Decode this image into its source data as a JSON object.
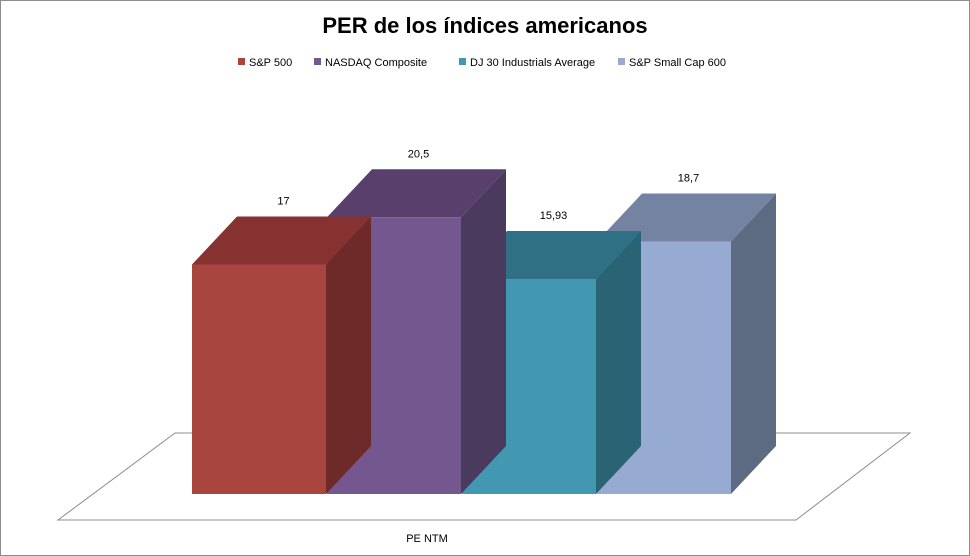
{
  "chart_data": {
    "type": "bar",
    "title": "PER de los índices americanos",
    "categories": [
      "PE NTM"
    ],
    "series": [
      {
        "name": "S&P 500",
        "values": [
          17
        ],
        "label": "17",
        "color": "#A9453F",
        "top_color": "#853230",
        "side_color": "#6E2A28"
      },
      {
        "name": "NASDAQ Composite",
        "values": [
          20.5
        ],
        "label": "20,5",
        "color": "#73578E",
        "top_color": "#583F6C",
        "side_color": "#4A3A5E"
      },
      {
        "name": "DJ 30 Industrials Average",
        "values": [
          15.93
        ],
        "label": "15,93",
        "color": "#4298B0",
        "top_color": "#2F7085",
        "side_color": "#2A6373"
      },
      {
        "name": "S&P Small Cap 600",
        "values": [
          18.7
        ],
        "label": "18,7",
        "color": "#97ABD2",
        "top_color": "#7483A2",
        "side_color": "#5C6A82"
      }
    ],
    "legend_position": "top",
    "grid": false,
    "ylim": [
      0,
      25
    ]
  }
}
